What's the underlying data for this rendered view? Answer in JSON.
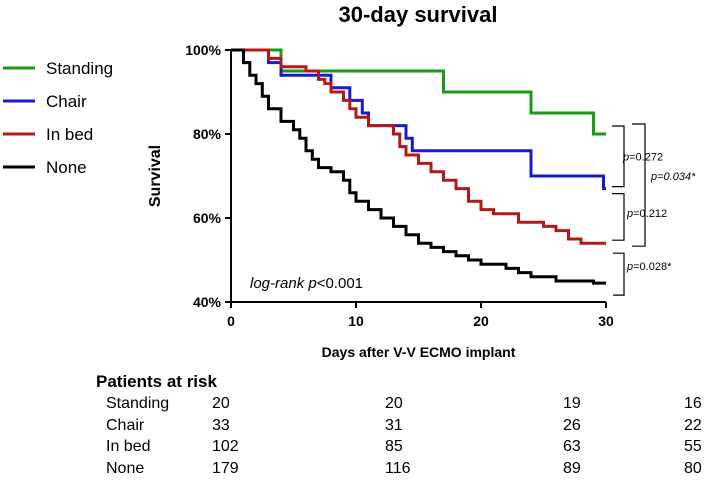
{
  "chart_data": {
    "type": "line",
    "title": "30-day survival",
    "xlabel": "Days after V-V ECMO implant",
    "ylabel": "Survival",
    "xlim": [
      0,
      30
    ],
    "ylim": [
      40,
      100
    ],
    "x_ticks": [
      0,
      10,
      20,
      30
    ],
    "x_tick_labels": [
      "0",
      "10",
      "20",
      "30"
    ],
    "y_ticks": [
      40,
      60,
      80,
      100
    ],
    "y_tick_labels": [
      "40%",
      "60%",
      "80%",
      "100%"
    ],
    "legend_position": "top-left-outside",
    "annotation": "log-rank p<0.001",
    "series": [
      {
        "name": "Standing",
        "color": "#1a9a1a",
        "points": [
          [
            0,
            100
          ],
          [
            4,
            100
          ],
          [
            4,
            95
          ],
          [
            17,
            95
          ],
          [
            17,
            90
          ],
          [
            24,
            90
          ],
          [
            24,
            85
          ],
          [
            29,
            85
          ],
          [
            29,
            80
          ],
          [
            30,
            80
          ]
        ]
      },
      {
        "name": "Chair",
        "color": "#1a1acc",
        "points": [
          [
            0,
            100
          ],
          [
            3,
            100
          ],
          [
            3,
            97
          ],
          [
            4,
            97
          ],
          [
            4,
            94
          ],
          [
            8,
            94
          ],
          [
            8,
            91
          ],
          [
            9.5,
            91
          ],
          [
            9.5,
            88
          ],
          [
            10.5,
            88
          ],
          [
            10.5,
            85
          ],
          [
            11,
            85
          ],
          [
            11,
            82
          ],
          [
            14,
            82
          ],
          [
            14,
            79
          ],
          [
            14.5,
            79
          ],
          [
            14.5,
            76
          ],
          [
            24,
            76
          ],
          [
            24,
            70
          ],
          [
            29.8,
            70
          ],
          [
            29.8,
            67
          ],
          [
            30,
            67
          ]
        ]
      },
      {
        "name": "In bed",
        "color": "#b51818",
        "points": [
          [
            0,
            100
          ],
          [
            3,
            100
          ],
          [
            3,
            98
          ],
          [
            4,
            98
          ],
          [
            4,
            96
          ],
          [
            6,
            96
          ],
          [
            6,
            95
          ],
          [
            7,
            95
          ],
          [
            7,
            93
          ],
          [
            7.5,
            93
          ],
          [
            7.5,
            92
          ],
          [
            8,
            92
          ],
          [
            8,
            90
          ],
          [
            9,
            90
          ],
          [
            9,
            88
          ],
          [
            9.5,
            88
          ],
          [
            9.5,
            86
          ],
          [
            10,
            86
          ],
          [
            10,
            84
          ],
          [
            11,
            84
          ],
          [
            11,
            82
          ],
          [
            13,
            82
          ],
          [
            13,
            80
          ],
          [
            13.5,
            80
          ],
          [
            13.5,
            77
          ],
          [
            14,
            77
          ],
          [
            14,
            75
          ],
          [
            15,
            75
          ],
          [
            15,
            73
          ],
          [
            16,
            73
          ],
          [
            16,
            71
          ],
          [
            17,
            71
          ],
          [
            17,
            69
          ],
          [
            18,
            69
          ],
          [
            18,
            67
          ],
          [
            19,
            67
          ],
          [
            19,
            64
          ],
          [
            20,
            64
          ],
          [
            20,
            62
          ],
          [
            21,
            62
          ],
          [
            21,
            61
          ],
          [
            23,
            61
          ],
          [
            23,
            59
          ],
          [
            24,
            59
          ],
          [
            24,
            59
          ],
          [
            25,
            59
          ],
          [
            25,
            58
          ],
          [
            26,
            58
          ],
          [
            26,
            57
          ],
          [
            27,
            57
          ],
          [
            27,
            55
          ],
          [
            28,
            55
          ],
          [
            28,
            54
          ],
          [
            30,
            54
          ]
        ]
      },
      {
        "name": "None",
        "color": "#000000",
        "points": [
          [
            0,
            100
          ],
          [
            1,
            100
          ],
          [
            1,
            97
          ],
          [
            1.5,
            97
          ],
          [
            1.5,
            94
          ],
          [
            2,
            94
          ],
          [
            2,
            92
          ],
          [
            2.5,
            92
          ],
          [
            2.5,
            89
          ],
          [
            3,
            89
          ],
          [
            3,
            86
          ],
          [
            4,
            86
          ],
          [
            4,
            83
          ],
          [
            5,
            83
          ],
          [
            5,
            81
          ],
          [
            5.5,
            81
          ],
          [
            5.5,
            79
          ],
          [
            6,
            79
          ],
          [
            6,
            76
          ],
          [
            6.5,
            76
          ],
          [
            6.5,
            74
          ],
          [
            7,
            74
          ],
          [
            7,
            72
          ],
          [
            8,
            72
          ],
          [
            8,
            71
          ],
          [
            9,
            71
          ],
          [
            9,
            69
          ],
          [
            9.5,
            69
          ],
          [
            9.5,
            66
          ],
          [
            10,
            66
          ],
          [
            10,
            64
          ],
          [
            11,
            64
          ],
          [
            11,
            62
          ],
          [
            12,
            62
          ],
          [
            12,
            60
          ],
          [
            13,
            60
          ],
          [
            13,
            58
          ],
          [
            14,
            58
          ],
          [
            14,
            56
          ],
          [
            15,
            56
          ],
          [
            15,
            54
          ],
          [
            16,
            54
          ],
          [
            16,
            53
          ],
          [
            17,
            53
          ],
          [
            17,
            52
          ],
          [
            18,
            52
          ],
          [
            18,
            51
          ],
          [
            19,
            51
          ],
          [
            19,
            50
          ],
          [
            20,
            50
          ],
          [
            20,
            49
          ],
          [
            22,
            49
          ],
          [
            22,
            48
          ],
          [
            23,
            48
          ],
          [
            23,
            47
          ],
          [
            24,
            47
          ],
          [
            24,
            46
          ],
          [
            25,
            46
          ],
          [
            25,
            46
          ],
          [
            26,
            46
          ],
          [
            26,
            45
          ],
          [
            28,
            45
          ],
          [
            28,
            45
          ],
          [
            29,
            45
          ],
          [
            29,
            44.5
          ],
          [
            30,
            44.5
          ]
        ]
      }
    ],
    "pairwise_p_values": [
      {
        "label_p": "p",
        "label_rest": "=0.272",
        "italic_rest": false,
        "between": [
          "Standing",
          "Chair"
        ]
      },
      {
        "label_p": "p",
        "label_rest": "=0.034*",
        "italic_rest": true,
        "between": [
          "Standing",
          "In bed"
        ]
      },
      {
        "label_p": "p",
        "label_rest": "=0.212",
        "italic_rest": false,
        "between": [
          "Chair",
          "In bed"
        ]
      },
      {
        "label_p": "p",
        "label_rest": "=0.028*",
        "italic_rest": false,
        "between": [
          "In bed",
          "None"
        ]
      }
    ]
  },
  "risk_table": {
    "title": "Patients at risk",
    "rows": [
      {
        "label": "Standing",
        "values": [
          "20",
          "20",
          "19",
          "16"
        ]
      },
      {
        "label": "Chair",
        "values": [
          "33",
          "31",
          "26",
          "22"
        ]
      },
      {
        "label": "In bed",
        "values": [
          "102",
          "85",
          "63",
          "55"
        ]
      },
      {
        "label": "None",
        "values": [
          "179",
          "116",
          "89",
          "80"
        ]
      }
    ]
  }
}
